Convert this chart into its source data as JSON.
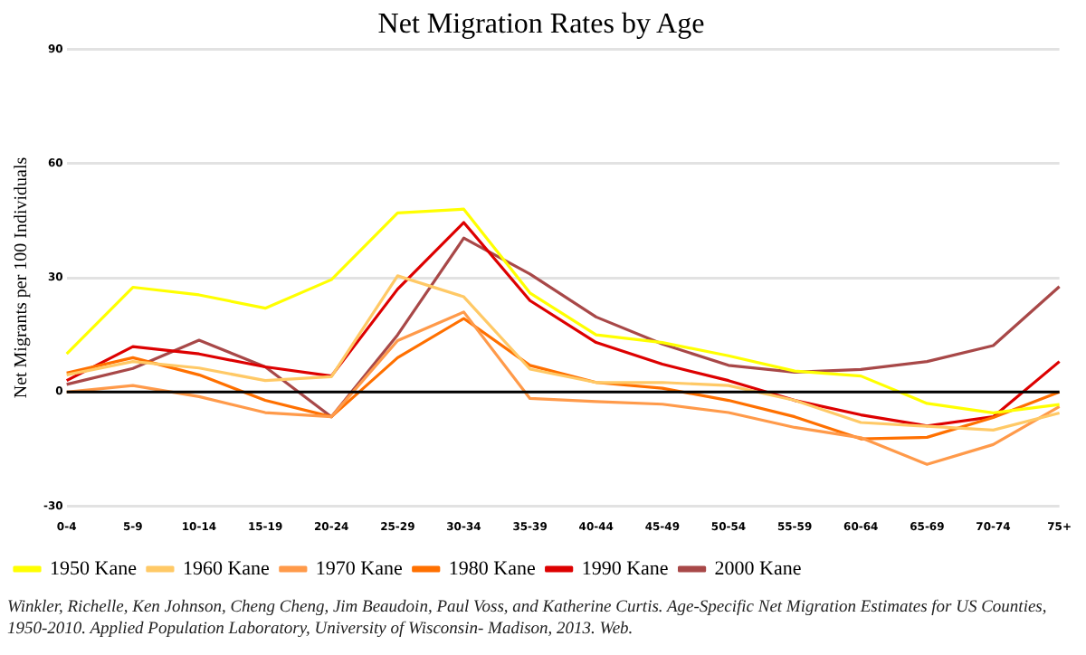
{
  "chart_data": {
    "type": "line",
    "title": "Net Migration Rates by Age",
    "ylabel": "Net Migrants per 100 Individuals",
    "categories": [
      "0-4",
      "5-9",
      "10-14",
      "15-19",
      "20-24",
      "25-29",
      "30-34",
      "35-39",
      "40-44",
      "45-49",
      "50-54",
      "55-59",
      "60-64",
      "65-69",
      "70-74",
      "75+"
    ],
    "series": [
      {
        "name": "1950 Kane",
        "color": "#ffff00",
        "values": [
          10,
          27.5,
          25.5,
          22,
          29.5,
          47,
          48,
          26,
          15,
          13,
          9.5,
          5.5,
          4.2,
          -3,
          -5.5,
          -3.3
        ]
      },
      {
        "name": "1960 Kane",
        "color": "#ffc966",
        "values": [
          4.5,
          8,
          6.3,
          3,
          4,
          30.5,
          25,
          6,
          2.5,
          2.5,
          1.7,
          -2.2,
          -8,
          -9,
          -10,
          -5.5
        ]
      },
      {
        "name": "1970 Kane",
        "color": "#ff9a4a",
        "values": [
          0,
          1.7,
          -1.2,
          -5.4,
          -6.5,
          13.5,
          21,
          -1.7,
          -2.5,
          -3.2,
          -5.4,
          -9.3,
          -12,
          -19,
          -13.8,
          -3.8
        ]
      },
      {
        "name": "1980 Kane",
        "color": "#ff7000",
        "values": [
          5,
          9,
          4.5,
          -2.2,
          -6.5,
          9,
          19.3,
          7,
          2.5,
          1,
          -2.2,
          -6.5,
          -12.3,
          -11.9,
          -6.7,
          0
        ]
      },
      {
        "name": "1990 Kane",
        "color": "#dd0000",
        "values": [
          3,
          11.9,
          10,
          6.6,
          4.2,
          27,
          44.5,
          24,
          13,
          7.3,
          3,
          -2.2,
          -6,
          -8.9,
          -6.5,
          8
        ]
      },
      {
        "name": "2000 Kane",
        "color": "#a84848",
        "values": [
          2,
          6.2,
          13.6,
          6.6,
          -6.5,
          15,
          40.4,
          31,
          19.7,
          12.6,
          7,
          5.2,
          5.9,
          8,
          12.2,
          27.7
        ]
      }
    ],
    "ylim": [
      -30,
      90
    ],
    "yticks": [
      -30,
      0,
      30,
      60,
      90
    ],
    "grid": "y",
    "legend": "bottom left",
    "marker": "none",
    "line_style": "solid",
    "ref_lines": [
      {
        "axis": "y",
        "value": 0,
        "color": "#000000"
      }
    ],
    "annotations": [
      "Winkler, Richelle, Ken Johnson, Cheng Cheng, Jim Beaudoin, Paul Voss, and Katherine Curtis. Age-Specific Net Migration Estimates for US Counties, 1950-2010. Applied Population Laboratory, University of Wisconsin- Madison, 2013. Web."
    ]
  }
}
